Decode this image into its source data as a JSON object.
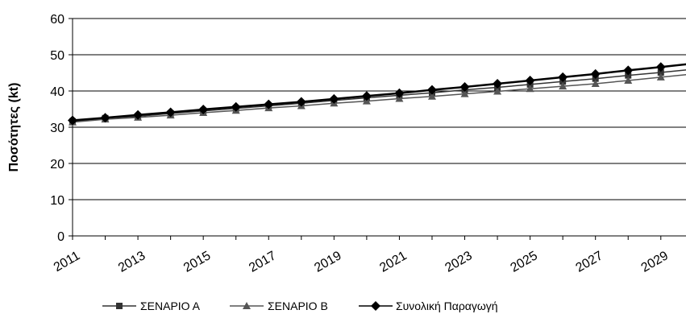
{
  "chart_data": {
    "type": "line",
    "title": "",
    "xlabel": "",
    "ylabel": "Ποσότητες (kt)",
    "ylim": [
      0,
      60
    ],
    "yticks": [
      0,
      10,
      20,
      30,
      40,
      50,
      60
    ],
    "xlim": [
      2011,
      2030
    ],
    "xtick_labels": [
      "2011",
      "2013",
      "2015",
      "2017",
      "2019",
      "2021",
      "2023",
      "2025",
      "2027",
      "2029"
    ],
    "grid": "horizontal",
    "legend": "bottom",
    "x": [
      2011,
      2012,
      2013,
      2014,
      2015,
      2016,
      2017,
      2018,
      2019,
      2020,
      2021,
      2022,
      2023,
      2024,
      2025,
      2026,
      2027,
      2028,
      2029,
      2030
    ],
    "series": [
      {
        "name": "ΣΕΝΑΡΙΟ Α",
        "marker": "square",
        "color": "#333333",
        "values": [
          31.6,
          32.5,
          33.0,
          33.8,
          34.5,
          35.2,
          35.9,
          36.6,
          37.4,
          38.1,
          38.8,
          39.5,
          40.3,
          41.0,
          41.8,
          42.6,
          43.4,
          44.3,
          45.1,
          46.0
        ]
      },
      {
        "name": "ΣΕΝΑΡΙΟ Β",
        "marker": "triangle",
        "color": "#555555",
        "values": [
          31.4,
          32.2,
          32.7,
          33.3,
          34.0,
          34.6,
          35.3,
          35.9,
          36.6,
          37.2,
          37.9,
          38.5,
          39.2,
          39.9,
          40.6,
          41.3,
          42.0,
          42.9,
          43.8,
          44.7
        ]
      },
      {
        "name": "Συνολική Παραγωγή",
        "marker": "diamond",
        "color": "#000000",
        "values": [
          31.9,
          32.6,
          33.4,
          34.1,
          34.9,
          35.6,
          36.3,
          37.0,
          37.8,
          38.6,
          39.4,
          40.3,
          41.1,
          42.0,
          42.9,
          43.8,
          44.7,
          45.7,
          46.6,
          47.6
        ]
      }
    ]
  }
}
